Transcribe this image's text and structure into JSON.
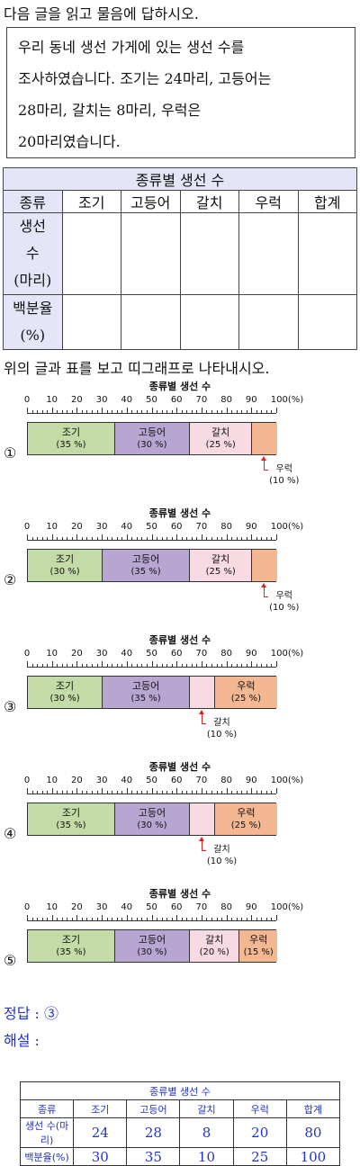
{
  "question": {
    "title": "다음 글을 읽고 물음에 답하시오.",
    "story_lines": [
      "우리 동네 생선 가게에 있는 생선 수를",
      "조사하였습니다. 조기는 24마리, 고등어는",
      "28마리, 갈치는 8마리, 우럭은",
      "20마리였습니다."
    ],
    "instruction": "위의 글과 표를 보고 띠그래프로 나타내시오."
  },
  "blank_table": {
    "title": "종류별 생선 수",
    "headers": [
      "종류",
      "조기",
      "고등어",
      "갈치",
      "우럭",
      "합계"
    ],
    "row1_label": [
      "생선",
      "수",
      "(마리)"
    ],
    "row2_label": [
      "백분율",
      "(%)"
    ]
  },
  "options": [
    {
      "number": "①",
      "chart_data": {
        "type": "bar",
        "title": "종류별 생선 수",
        "ticks": [
          "0",
          "10",
          "20",
          "30",
          "40",
          "50",
          "60",
          "70",
          "80",
          "90",
          "100(%)"
        ],
        "segments": [
          {
            "name": "조기",
            "pct": 35,
            "label": "(35 %)",
            "color": "#c3dba6"
          },
          {
            "name": "고등어",
            "pct": 30,
            "label": "(30 %)",
            "color": "#b8a6d2"
          },
          {
            "name": "갈치",
            "pct": 25,
            "label": "(25 %)",
            "color": "#f8dae3"
          },
          {
            "name": "우럭",
            "pct": 10,
            "label": "(10 %)",
            "color": "#f3b791",
            "callout": true
          }
        ]
      }
    },
    {
      "number": "②",
      "chart_data": {
        "type": "bar",
        "title": "종류별 생선 수",
        "ticks": [
          "0",
          "10",
          "20",
          "30",
          "40",
          "50",
          "60",
          "70",
          "80",
          "90",
          "100(%)"
        ],
        "segments": [
          {
            "name": "조기",
            "pct": 30,
            "label": "(30 %)",
            "color": "#c3dba6"
          },
          {
            "name": "고등어",
            "pct": 35,
            "label": "(35 %)",
            "color": "#b8a6d2"
          },
          {
            "name": "갈치",
            "pct": 25,
            "label": "(25 %)",
            "color": "#f8dae3"
          },
          {
            "name": "우럭",
            "pct": 10,
            "label": "(10 %)",
            "color": "#f3b791",
            "callout": true
          }
        ]
      }
    },
    {
      "number": "③",
      "chart_data": {
        "type": "bar",
        "title": "종류별 생선 수",
        "ticks": [
          "0",
          "10",
          "20",
          "30",
          "40",
          "50",
          "60",
          "70",
          "80",
          "90",
          "100(%)"
        ],
        "segments": [
          {
            "name": "조기",
            "pct": 30,
            "label": "(30 %)",
            "color": "#c3dba6"
          },
          {
            "name": "고등어",
            "pct": 35,
            "label": "(35 %)",
            "color": "#b8a6d2"
          },
          {
            "name": "갈치",
            "pct": 10,
            "label": "(10 %)",
            "color": "#f8dae3",
            "callout": true
          },
          {
            "name": "우럭",
            "pct": 25,
            "label": "(25 %)",
            "color": "#f3b791"
          }
        ]
      }
    },
    {
      "number": "④",
      "chart_data": {
        "type": "bar",
        "title": "종류별 생선 수",
        "ticks": [
          "0",
          "10",
          "20",
          "30",
          "40",
          "50",
          "60",
          "70",
          "80",
          "90",
          "100(%)"
        ],
        "segments": [
          {
            "name": "조기",
            "pct": 35,
            "label": "(35 %)",
            "color": "#c3dba6"
          },
          {
            "name": "고등어",
            "pct": 30,
            "label": "(30 %)",
            "color": "#b8a6d2"
          },
          {
            "name": "갈치",
            "pct": 10,
            "label": "(10 %)",
            "color": "#f8dae3",
            "callout": true
          },
          {
            "name": "우럭",
            "pct": 25,
            "label": "(25 %)",
            "color": "#f3b791"
          }
        ]
      }
    },
    {
      "number": "⑤",
      "chart_data": {
        "type": "bar",
        "title": "종류별 생선 수",
        "ticks": [
          "0",
          "10",
          "20",
          "30",
          "40",
          "50",
          "60",
          "70",
          "80",
          "90",
          "100(%)"
        ],
        "segments": [
          {
            "name": "조기",
            "pct": 35,
            "label": "(35 %)",
            "color": "#c3dba6"
          },
          {
            "name": "고등어",
            "pct": 30,
            "label": "(30 %)",
            "color": "#b8a6d2"
          },
          {
            "name": "갈치",
            "pct": 20,
            "label": "(20 %)",
            "color": "#f8dae3"
          },
          {
            "name": "우럭",
            "pct": 15,
            "label": "(15 %)",
            "color": "#f3b791"
          }
        ]
      }
    }
  ],
  "answer": {
    "text": "정답 : ③"
  },
  "explanation": {
    "text": "해설 :"
  },
  "solution_table": {
    "title": "종류별 생선 수",
    "headers": [
      "종류",
      "조기",
      "고등어",
      "갈치",
      "우럭",
      "합계"
    ],
    "row1": {
      "label": "생선 수(마리)",
      "values": [
        "24",
        "28",
        "8",
        "20",
        "80"
      ]
    },
    "row2": {
      "label": "백분율(%)",
      "values": [
        "30",
        "35",
        "10",
        "25",
        "100"
      ]
    }
  }
}
